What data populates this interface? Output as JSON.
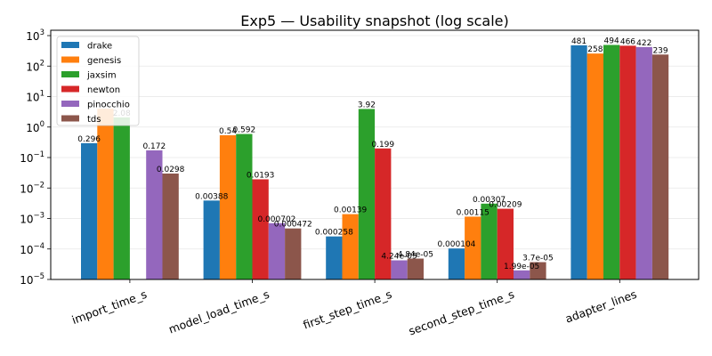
{
  "chart_data": {
    "type": "bar",
    "title": "Exp5 — Usability snapshot (log scale)",
    "xlabel": "",
    "ylabel": "",
    "yscale": "log",
    "ylim": [
      1e-05,
      1000
    ],
    "y_ticks": [
      {
        "value": 1e-05,
        "base": "10",
        "exp": "−5"
      },
      {
        "value": 0.0001,
        "base": "10",
        "exp": "−4"
      },
      {
        "value": 0.001,
        "base": "10",
        "exp": "−3"
      },
      {
        "value": 0.01,
        "base": "10",
        "exp": "−2"
      },
      {
        "value": 0.1,
        "base": "10",
        "exp": "−1"
      },
      {
        "value": 1,
        "base": "10",
        "exp": "0"
      },
      {
        "value": 10,
        "base": "10",
        "exp": "1"
      },
      {
        "value": 100,
        "base": "10",
        "exp": "2"
      },
      {
        "value": 1000,
        "base": "10",
        "exp": "3"
      }
    ],
    "grid": "y-major",
    "legend_position": "top-left",
    "categories": [
      "import_time_s",
      "model_load_time_s",
      "first_step_time_s",
      "second_step_time_s",
      "adapter_lines"
    ],
    "series": [
      {
        "name": "drake",
        "color": "#1f77b4",
        "values": [
          0.296,
          0.00388,
          0.000258,
          0.000104,
          481
        ],
        "labels": [
          "0.296",
          "0.00388",
          "0.000258",
          "0.000104",
          "481"
        ]
      },
      {
        "name": "genesis",
        "color": "#ff7f0e",
        "values": [
          4.0,
          0.54,
          0.00139,
          0.00115,
          258
        ],
        "labels": [
          "",
          "0.54",
          "0.00139",
          "0.00115",
          "258"
        ]
      },
      {
        "name": "jaxsim",
        "color": "#2ca02c",
        "values": [
          2.08,
          0.592,
          3.92,
          0.00307,
          494
        ],
        "labels": [
          "2.08",
          "0.592",
          "3.92",
          "0.00307",
          "494"
        ]
      },
      {
        "name": "newton",
        "color": "#d62728",
        "values": [
          null,
          0.0193,
          0.199,
          0.00209,
          466
        ],
        "labels": [
          "",
          "0.0193",
          "0.199",
          "0.00209",
          "466"
        ]
      },
      {
        "name": "pinocchio",
        "color": "#9467bd",
        "values": [
          0.172,
          0.000702,
          4.24e-05,
          1.99e-05,
          422
        ],
        "labels": [
          "0.172",
          "0.000702",
          "4.24e-05",
          "1.99e-05",
          "422"
        ]
      },
      {
        "name": "tds",
        "color": "#8c564b",
        "values": [
          0.0298,
          0.000472,
          4.84e-05,
          3.7e-05,
          239
        ],
        "labels": [
          "0.0298",
          "0.000472",
          "4.84e-05",
          "3.7e-05",
          "239"
        ]
      }
    ]
  }
}
